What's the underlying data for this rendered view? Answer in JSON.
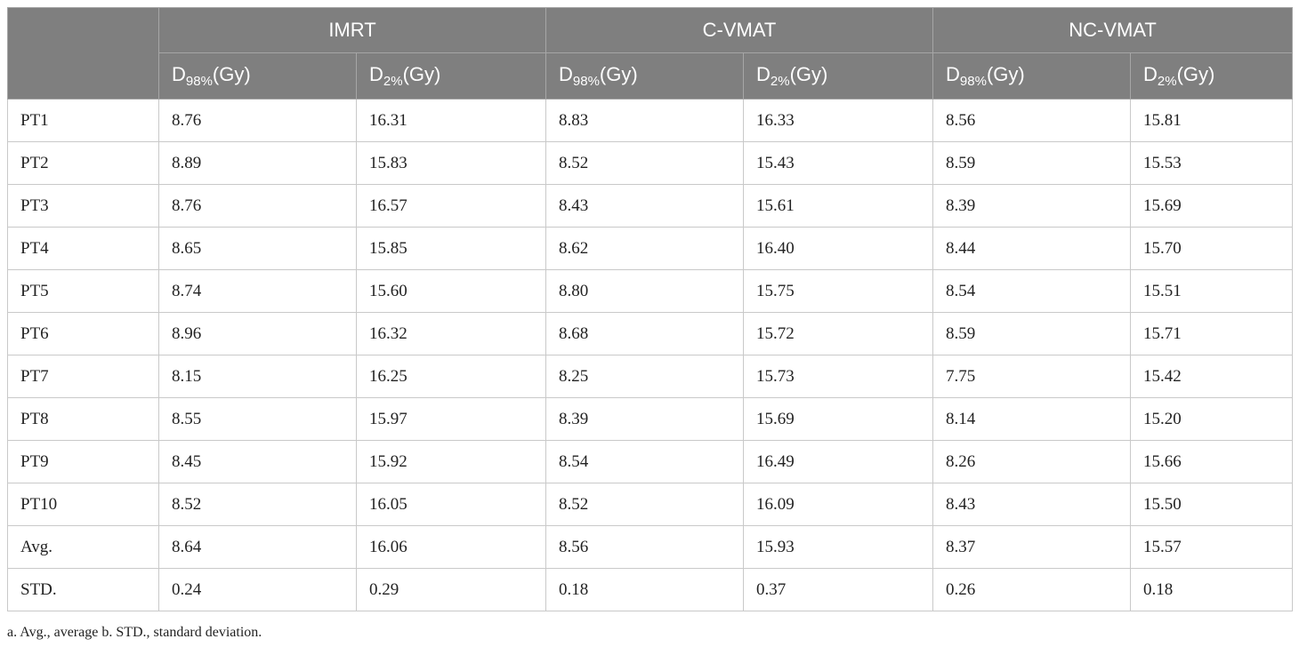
{
  "table": {
    "groups": [
      "IMRT",
      "C-VMAT",
      "NC-VMAT"
    ],
    "subheaders": [
      {
        "base": "D",
        "sub": "98%",
        "unit": "(Gy)"
      },
      {
        "base": "D",
        "sub": "2%",
        "unit": "(Gy)"
      }
    ],
    "rows": [
      {
        "label": "PT1",
        "values": [
          "8.76",
          "16.31",
          "8.83",
          "16.33",
          "8.56",
          "15.81"
        ]
      },
      {
        "label": "PT2",
        "values": [
          "8.89",
          "15.83",
          "8.52",
          "15.43",
          "8.59",
          "15.53"
        ]
      },
      {
        "label": "PT3",
        "values": [
          "8.76",
          "16.57",
          "8.43",
          "15.61",
          "8.39",
          "15.69"
        ]
      },
      {
        "label": "PT4",
        "values": [
          "8.65",
          "15.85",
          "8.62",
          "16.40",
          "8.44",
          "15.70"
        ]
      },
      {
        "label": "PT5",
        "values": [
          "8.74",
          "15.60",
          "8.80",
          "15.75",
          "8.54",
          "15.51"
        ]
      },
      {
        "label": "PT6",
        "values": [
          "8.96",
          "16.32",
          "8.68",
          "15.72",
          "8.59",
          "15.71"
        ]
      },
      {
        "label": "PT7",
        "values": [
          "8.15",
          "16.25",
          "8.25",
          "15.73",
          "7.75",
          "15.42"
        ]
      },
      {
        "label": "PT8",
        "values": [
          "8.55",
          "15.97",
          "8.39",
          "15.69",
          "8.14",
          "15.20"
        ]
      },
      {
        "label": "PT9",
        "values": [
          "8.45",
          "15.92",
          "8.54",
          "16.49",
          "8.26",
          "15.66"
        ]
      },
      {
        "label": "PT10",
        "values": [
          "8.52",
          "16.05",
          "8.52",
          "16.09",
          "8.43",
          "15.50"
        ]
      },
      {
        "label": "Avg.",
        "values": [
          "8.64",
          "16.06",
          "8.56",
          "15.93",
          "8.37",
          "15.57"
        ]
      },
      {
        "label": "STD.",
        "values": [
          "0.24",
          "0.29",
          "0.18",
          "0.37",
          "0.26",
          "0.18"
        ]
      }
    ]
  },
  "footnote": "a. Avg., average b. STD., standard deviation.",
  "colors": {
    "header_bg": "#7f7f7f",
    "header_text": "#ffffff",
    "grid": "#c9c9c9",
    "body_text": "#222222"
  }
}
